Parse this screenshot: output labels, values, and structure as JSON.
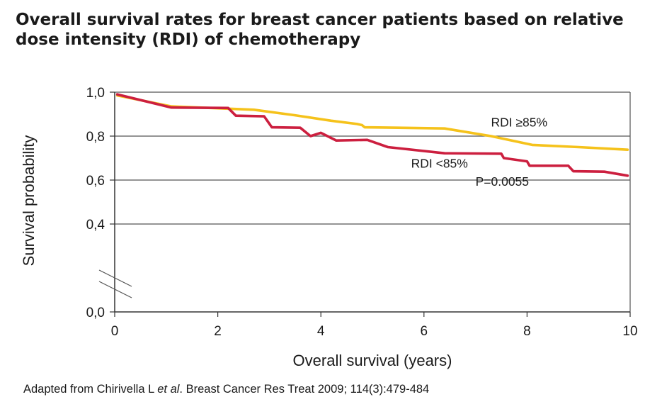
{
  "title_line1": "Overall survival rates for breast cancer patients based on relative",
  "title_line2": "dose intensity (RDI) of chemotherapy",
  "caption": {
    "before": "Adapted from Chirivella L ",
    "italic": "et al",
    "after": ". Breast Cancer Res Treat 2009; 114(3):479-484"
  },
  "chart_data": {
    "type": "line",
    "title": "Overall survival rates for breast cancer patients based on relative dose intensity (RDI) of chemotherapy",
    "xlabel": "Overall survival (years)",
    "ylabel": "Survival probability",
    "xlim": [
      0,
      10
    ],
    "ylim": [
      0,
      1.0
    ],
    "axis_break": "between 0,0 and 0,4",
    "xticks": [
      0,
      2,
      4,
      6,
      8,
      10
    ],
    "xtick_labels": [
      "0",
      "2",
      "4",
      "6",
      "8",
      "10"
    ],
    "yticks": [
      0.0,
      0.4,
      0.6,
      0.8,
      1.0
    ],
    "ytick_labels": [
      "0,0",
      "0,4",
      "0,6",
      "0,8",
      "1,0"
    ],
    "grid": "horizontal",
    "series": [
      {
        "name": "RDI ≥85%",
        "color": "#f5c21b",
        "x": [
          0.05,
          1.1,
          2.2,
          2.7,
          3.5,
          4.2,
          4.7,
          4.8,
          4.85,
          5.5,
          6.4,
          7.3,
          8.1,
          9.0,
          9.95
        ],
        "y": [
          0.985,
          0.935,
          0.925,
          0.92,
          0.895,
          0.87,
          0.855,
          0.85,
          0.84,
          0.838,
          0.835,
          0.8,
          0.76,
          0.75,
          0.738
        ]
      },
      {
        "name": "RDI <85%",
        "color": "#cc1f3f",
        "x": [
          0.05,
          1.1,
          2.2,
          2.35,
          2.9,
          3.05,
          3.6,
          3.8,
          4.0,
          4.3,
          4.9,
          5.3,
          6.4,
          7.5,
          7.55,
          8.0,
          8.05,
          8.8,
          8.9,
          9.5,
          9.95
        ],
        "y": [
          0.99,
          0.93,
          0.928,
          0.893,
          0.89,
          0.84,
          0.838,
          0.8,
          0.815,
          0.78,
          0.783,
          0.75,
          0.722,
          0.72,
          0.7,
          0.685,
          0.665,
          0.665,
          0.64,
          0.638,
          0.62
        ]
      }
    ],
    "annotations": [
      {
        "text": "RDI ≥85%",
        "x": 7.3,
        "y": 0.843
      },
      {
        "text": "RDI <85%",
        "x": 5.75,
        "y": 0.657
      },
      {
        "text": "P=0.0055",
        "x": 7.0,
        "y": 0.575
      }
    ],
    "colors": {
      "axis": "#333333",
      "grid": "#555555"
    }
  }
}
